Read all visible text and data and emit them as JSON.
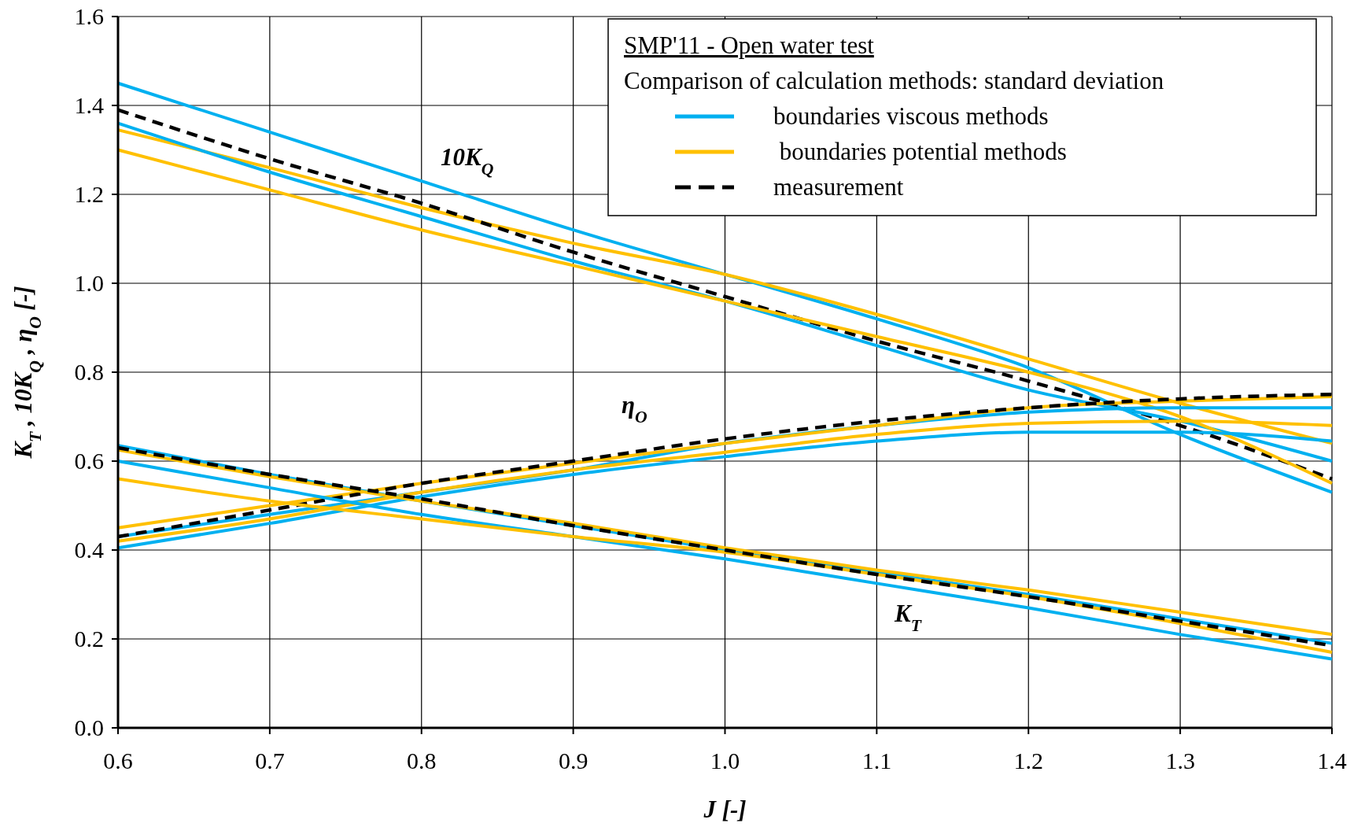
{
  "chart_data": {
    "type": "line",
    "xlabel": "J  [-]",
    "ylabel": "K$_{T}$ , 10K$_{Q}$ , η$_{O}$  [-]",
    "legend_title": "SMP'11 - Open water test",
    "subtitle": "Comparison of calculation methods: standard deviation",
    "x": [
      0.6,
      0.7,
      0.8,
      0.9,
      1.0,
      1.1,
      1.2,
      1.3,
      1.4
    ],
    "xlim": [
      0.6,
      1.4
    ],
    "xticks": [
      {
        "value": 0.6,
        "label": "0.6"
      },
      {
        "value": 0.7,
        "label": "0.7"
      },
      {
        "value": 0.8,
        "label": "0.8"
      },
      {
        "value": 0.9,
        "label": "0.9"
      },
      {
        "value": 1.0,
        "label": "1.0"
      },
      {
        "value": 1.1,
        "label": "1.1"
      },
      {
        "value": 1.2,
        "label": "1.2"
      },
      {
        "value": 1.3,
        "label": "1.3"
      },
      {
        "value": 1.4,
        "label": "1.4"
      }
    ],
    "ylim": [
      0,
      1.6
    ],
    "yticks": [
      {
        "value": 0,
        "label": "0.0"
      },
      {
        "value": 0.2,
        "label": "0.2"
      },
      {
        "value": 0.4,
        "label": "0.4"
      },
      {
        "value": 0.6,
        "label": "0.6"
      },
      {
        "value": 0.8,
        "label": "0.8"
      },
      {
        "value": 1.0,
        "label": "1.0"
      },
      {
        "value": 1.2,
        "label": "1.2"
      },
      {
        "value": 1.4,
        "label": "1.4"
      },
      {
        "value": 1.6,
        "label": "1.6"
      }
    ],
    "grid": true,
    "legend": "top right",
    "series": [
      {
        "name": "boundaries viscous methods",
        "color": "#00b0f0",
        "values": [
          1.45,
          1.34,
          1.23,
          1.12,
          1.02,
          0.92,
          0.81,
          0.66,
          0.53
        ]
      },
      {
        "name": " boundaries potential methods",
        "color": "#ffc000",
        "values": [
          1.345,
          1.26,
          1.17,
          1.09,
          1.02,
          0.93,
          0.83,
          0.73,
          0.64
        ]
      },
      {
        "name": "measurement",
        "color": "#000000",
        "line_style": "dashed",
        "values": [
          1.39,
          1.28,
          1.18,
          1.07,
          0.97,
          0.87,
          0.78,
          0.68,
          0.56
        ]
      },
      {
        "color": "#00b0f0",
        "values": [
          1.36,
          1.25,
          1.15,
          1.05,
          0.96,
          0.86,
          0.76,
          0.69,
          0.6
        ]
      },
      {
        "color": "#ffc000",
        "values": [
          1.3,
          1.21,
          1.12,
          1.04,
          0.96,
          0.88,
          0.8,
          0.7,
          0.55
        ]
      },
      {
        "color": "#00b0f0",
        "values": [
          0.43,
          0.48,
          0.53,
          0.58,
          0.64,
          0.68,
          0.71,
          0.72,
          0.72
        ]
      },
      {
        "color": "#00b0f0",
        "values": [
          0.405,
          0.46,
          0.52,
          0.57,
          0.61,
          0.645,
          0.665,
          0.665,
          0.645
        ]
      },
      {
        "color": "#ffc000",
        "values": [
          0.45,
          0.5,
          0.55,
          0.595,
          0.64,
          0.68,
          0.72,
          0.735,
          0.745
        ]
      },
      {
        "color": "#ffc000",
        "values": [
          0.42,
          0.47,
          0.53,
          0.58,
          0.62,
          0.66,
          0.685,
          0.69,
          0.68
        ]
      },
      {
        "color": "#000000",
        "line_style": "dashed",
        "values": [
          0.43,
          0.49,
          0.55,
          0.6,
          0.65,
          0.69,
          0.72,
          0.74,
          0.75
        ]
      },
      {
        "color": "#00b0f0",
        "values": [
          0.635,
          0.57,
          0.51,
          0.455,
          0.4,
          0.35,
          0.3,
          0.245,
          0.19
        ]
      },
      {
        "color": "#00b0f0",
        "values": [
          0.6,
          0.54,
          0.48,
          0.43,
          0.38,
          0.325,
          0.27,
          0.21,
          0.155
        ]
      },
      {
        "color": "#ffc000",
        "values": [
          0.625,
          0.565,
          0.51,
          0.46,
          0.405,
          0.355,
          0.31,
          0.26,
          0.21
        ]
      },
      {
        "color": "#ffc000",
        "values": [
          0.56,
          0.51,
          0.47,
          0.43,
          0.395,
          0.345,
          0.295,
          0.235,
          0.17
        ]
      },
      {
        "color": "#000000",
        "line_style": "dashed",
        "values": [
          0.63,
          0.57,
          0.515,
          0.455,
          0.4,
          0.345,
          0.295,
          0.24,
          0.185
        ]
      }
    ],
    "annotations": [
      "10K$_{Q}$",
      "η$_{O}$",
      "K$_{T}$"
    ]
  }
}
